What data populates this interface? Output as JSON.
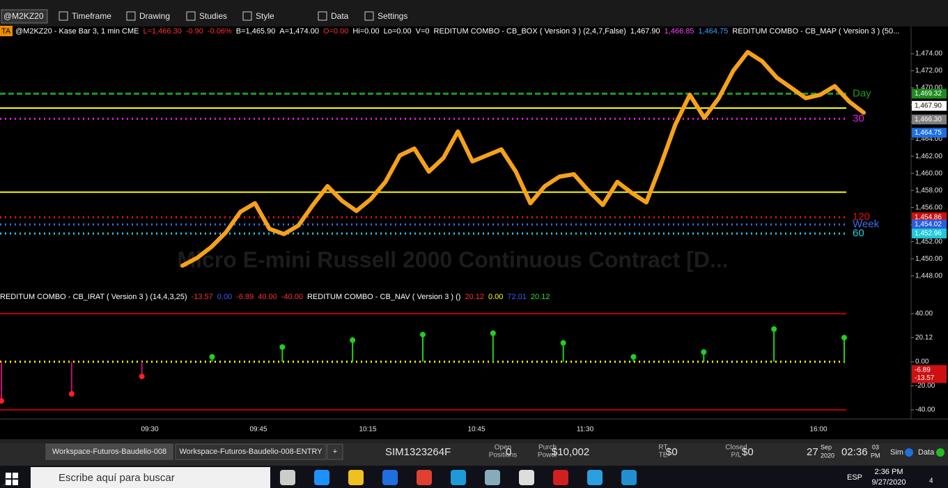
{
  "toolbar": {
    "symbol": "@M2KZ20",
    "menus": [
      "Timeframe",
      "Drawing",
      "Studies",
      "Style",
      "Data",
      "Settings"
    ]
  },
  "info_badge": "TA",
  "info_line": [
    {
      "text": "@M2KZ20 - Kase Bar 3, 1 min  CME",
      "color": "#ffffff"
    },
    {
      "text": "L=1,466.30",
      "color": "#ff3030"
    },
    {
      "text": "-0.90",
      "color": "#ff3030"
    },
    {
      "text": "-0.06%",
      "color": "#ff3030"
    },
    {
      "text": "B=1,465.90",
      "color": "#ffffff"
    },
    {
      "text": "A=1,474.00",
      "color": "#ffffff"
    },
    {
      "text": "O=0.00",
      "color": "#ff3030"
    },
    {
      "text": "Hi=0.00",
      "color": "#ffffff"
    },
    {
      "text": "Lo=0.00",
      "color": "#ffffff"
    },
    {
      "text": "V=0",
      "color": "#ffffff"
    },
    {
      "text": "REDITUM COMBO - CB_BOX ( Version 3 ) (2,4,7,False)",
      "color": "#ffffff"
    },
    {
      "text": "1,467.90",
      "color": "#ffffff"
    },
    {
      "text": "1,466.85",
      "color": "#ff40ff"
    },
    {
      "text": "1,464.75",
      "color": "#3a9cff"
    },
    {
      "text": "REDITUM COMBO - CB_MAP ( Version 3 ) (50...",
      "color": "#ffffff"
    }
  ],
  "indicator_line": [
    {
      "text": "REDITUM COMBO - CB_IRAT ( Version 3 ) (14,4,3,25)",
      "color": "#ffffff"
    },
    {
      "text": "-13.57",
      "color": "#ff3030"
    },
    {
      "text": "0.00",
      "color": "#3a5cff"
    },
    {
      "text": "-6.89",
      "color": "#ff3030"
    },
    {
      "text": "40.00",
      "color": "#ff3030"
    },
    {
      "text": "-40.00",
      "color": "#ff3030"
    },
    {
      "text": "REDITUM COMBO - CB_NAV ( Version 3 ) ()",
      "color": "#ffffff"
    },
    {
      "text": "20.12",
      "color": "#ff3030"
    },
    {
      "text": "0.00",
      "color": "#ffff00"
    },
    {
      "text": "72.01",
      "color": "#3a5cff"
    },
    {
      "text": "20.12",
      "color": "#30e030"
    }
  ],
  "chart_data": [
    {
      "type": "line",
      "watermark": "Micro E-mini Russell 2000 Continuous Contract [D...",
      "color": "#f5a21a",
      "ylim": [
        1446.43,
        1476.04
      ],
      "yticks": [
        {
          "value": 1448,
          "label": "1,448.00"
        },
        {
          "value": 1450,
          "label": "1,450.00"
        },
        {
          "value": 1452,
          "label": "1,452.00"
        },
        {
          "value": 1454,
          "label": "1,454.00"
        },
        {
          "value": 1456,
          "label": "1,456.00"
        },
        {
          "value": 1458,
          "label": "1,458.00"
        },
        {
          "value": 1460,
          "label": "1,460.00"
        },
        {
          "value": 1462,
          "label": "1,462.00"
        },
        {
          "value": 1464,
          "label": "1,464.00"
        },
        {
          "value": 1466,
          "label": "1,466.00"
        },
        {
          "value": 1468,
          "label": "1,468.00"
        },
        {
          "value": 1470,
          "label": "1,470.00"
        },
        {
          "value": 1472,
          "label": "1,472.00"
        },
        {
          "value": 1474,
          "label": "1,474.00"
        }
      ],
      "values": [
        1449.2,
        1450.1,
        1451.4,
        1453.1,
        1455.5,
        1456.5,
        1453.5,
        1452.9,
        1453.9,
        1456.3,
        1458.5,
        1456.8,
        1455.6,
        1457.0,
        1459.0,
        1462.1,
        1462.9,
        1460.2,
        1461.8,
        1464.9,
        1461.4,
        1462.1,
        1462.8,
        1460.2,
        1456.5,
        1458.5,
        1459.6,
        1459.9,
        1458.0,
        1456.3,
        1459.0,
        1457.7,
        1456.6,
        1461.0,
        1465.7,
        1469.2,
        1466.5,
        1468.8,
        1472.0,
        1474.2,
        1473.1,
        1471.2,
        1470.0,
        1468.8,
        1469.2,
        1470.2,
        1468.4,
        1467.1
      ],
      "levels": [
        {
          "value": 1469.32,
          "color": "#1f9a1f",
          "style": "dashed",
          "label": "Day"
        },
        {
          "value": 1466.38,
          "color": "#e020e0",
          "style": "dotted",
          "label": "30"
        },
        {
          "value": 1467.64,
          "color": "#ffff00",
          "style": "solid"
        },
        {
          "value": 1457.8,
          "color": "#ffff00",
          "style": "solid"
        },
        {
          "value": 1454.86,
          "color": "#e01010",
          "style": "dotted",
          "label": "120"
        },
        {
          "value": 1454.02,
          "color": "#3a6cf0",
          "style": "dotted",
          "label": "Week"
        },
        {
          "value": 1452.96,
          "color": "#20d0e0",
          "style": "dotted",
          "label": "60"
        }
      ],
      "price_labels": [
        {
          "value": 1469.32,
          "label": "1,469.32",
          "color": "#1f8a1f"
        },
        {
          "value": 1467.9,
          "label": "1,467.90",
          "color": "#ffffff"
        },
        {
          "value": 1466.3,
          "label": "1,466.30",
          "color": "#808080"
        },
        {
          "value": 1464.75,
          "label": "1,464.75",
          "color": "#1e6fe0"
        },
        {
          "value": 1454.86,
          "label": "1,454.86",
          "color": "#d01010"
        },
        {
          "value": 1454.02,
          "label": "1,454.02",
          "color": "#2a5ce0"
        },
        {
          "value": 1452.96,
          "label": "1,452.96",
          "color": "#20c8d8"
        }
      ]
    },
    {
      "type": "lollipop",
      "color": "#20d020",
      "ylim": [
        -47,
        47.5
      ],
      "yticks": [
        {
          "value": 40,
          "label": "40.00"
        },
        {
          "value": 20.12,
          "label": "20.12"
        },
        {
          "value": 0,
          "label": "0.00"
        },
        {
          "value": -20,
          "label": "-20.00"
        },
        {
          "value": -40,
          "label": "-40.00"
        }
      ],
      "values": [
        -32.5,
        -26.7,
        -12.2,
        4.1,
        12.2,
        18.0,
        22.6,
        23.8,
        15.7,
        4.1,
        8.1,
        27.2,
        20.1
      ],
      "levels": [
        {
          "value": 40,
          "color": "#c00000",
          "style": "solid"
        },
        {
          "value": -40,
          "color": "#c00000",
          "style": "solid"
        },
        {
          "value": 0,
          "color": "#ffff00",
          "style": "dotted"
        }
      ],
      "price_labels": [
        {
          "value": -6.89,
          "label": "-6.89",
          "color": "#d01010"
        },
        {
          "value": -13.57,
          "label": "-13.57",
          "color": "#d01010"
        }
      ]
    }
  ],
  "time_axis": [
    "09:30",
    "09:45",
    "10:15",
    "10:45",
    "11:30",
    "16:00"
  ],
  "status_bar": {
    "tabs": [
      "Workspace-Futuros-Baudelio-008",
      "Workspace-Futuros-Baudelio-008-ENTRY",
      "+"
    ],
    "account": "SIM1323264F",
    "fields": [
      {
        "label": [
          "Open",
          "Positions"
        ],
        "value": "0"
      },
      {
        "label": [
          "Purch",
          "Power"
        ],
        "value": "$10,002"
      },
      {
        "label": [
          "RT",
          "TE"
        ],
        "value": "$0"
      },
      {
        "label": [
          "Closed",
          "P/L"
        ],
        "value": "$0"
      }
    ],
    "day": "27",
    "month": "Sep",
    "year": "2020",
    "time": "02:36",
    "seconds": "03",
    "ampm": "PM",
    "sim": "Sim",
    "data": "Data"
  },
  "taskbar": {
    "search": "Escribe aquí para buscar",
    "language": "ESP",
    "time": "2:36 PM",
    "date": "9/27/2020",
    "notifications": "4"
  }
}
